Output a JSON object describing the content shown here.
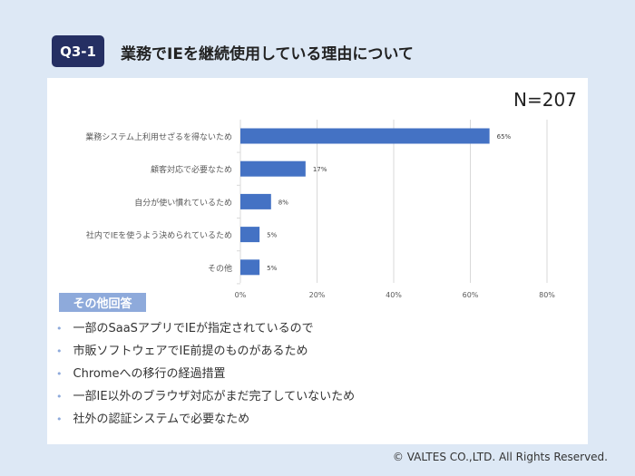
{
  "header": {
    "badge": "Q3-1",
    "title": "業務でIEを継続使用している理由について"
  },
  "sample_size": "N=207",
  "chart_data": {
    "type": "bar",
    "orientation": "horizontal",
    "categories": [
      "業務システム上利用せざるを得ないため",
      "顧客対応で必要なため",
      "自分が使い慣れているため",
      "社内でIEを使うよう決められているため",
      "その他"
    ],
    "values": [
      65,
      17,
      8,
      5,
      5
    ],
    "data_labels": [
      "65%",
      "17%",
      "8%",
      "5%",
      "5%"
    ],
    "xlim": [
      0,
      80
    ],
    "x_ticks": [
      "0%",
      "20%",
      "40%",
      "60%",
      "80%"
    ],
    "grid": true,
    "bar_color": "#4472c4"
  },
  "other_answers": {
    "label": "その他回答",
    "items": [
      "一部のSaaSアプリでIEが指定されているので",
      "市販ソフトウェアでIE前提のものがあるため",
      "Chromeへの移行の経過措置",
      "一部IE以外のブラウザ対応がまだ完了していないため",
      "社外の認証システムで必要なため"
    ]
  },
  "footer": {
    "copyright": "© VALTES CO.,LTD. All Rights Reserved."
  }
}
